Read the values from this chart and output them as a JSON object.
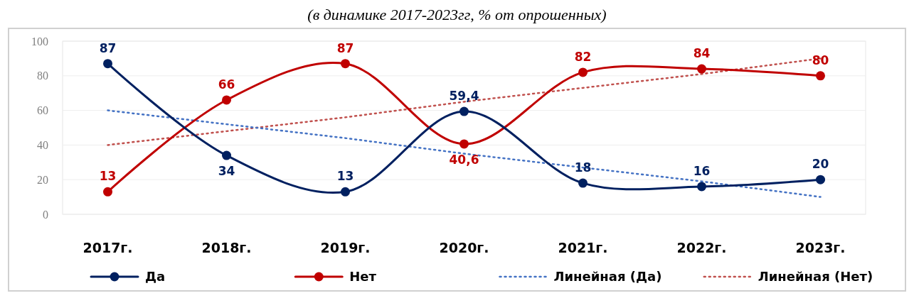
{
  "chart_data": {
    "type": "line",
    "subtitle": "(в динамике 2017-2023гг, % от опрошенных)",
    "categories": [
      "2017г.",
      "2018г.",
      "2019г.",
      "2020г.",
      "2021г.",
      "2022г.",
      "2023г."
    ],
    "series": [
      {
        "name": "Да",
        "color": "#002060",
        "values": [
          87,
          34,
          13,
          59.4,
          18,
          16,
          20
        ],
        "value_labels": [
          "87",
          "34",
          "13",
          "59,4",
          "18",
          "16",
          "20"
        ],
        "marker": "circle",
        "line_style": "solid"
      },
      {
        "name": "Нет",
        "color": "#c00000",
        "values": [
          13,
          66,
          87,
          40.6,
          82,
          84,
          80
        ],
        "value_labels": [
          "13",
          "66",
          "87",
          "40,6",
          "82",
          "84",
          "80"
        ],
        "marker": "circle",
        "line_style": "solid"
      },
      {
        "name": "Линейная (Да)",
        "color": "#4472c4",
        "values": [
          60,
          52,
          44,
          35,
          27,
          19,
          10
        ],
        "marker": "none",
        "line_style": "dotted"
      },
      {
        "name": "Линейная (Нет)",
        "color": "#c0504d",
        "values": [
          40,
          48,
          56,
          65,
          73,
          81,
          90
        ],
        "marker": "none",
        "line_style": "dotted"
      }
    ],
    "ylim": [
      0,
      100
    ],
    "yticks": [
      0,
      20,
      40,
      60,
      80,
      100
    ],
    "grid": "y",
    "legend": "bottom"
  }
}
